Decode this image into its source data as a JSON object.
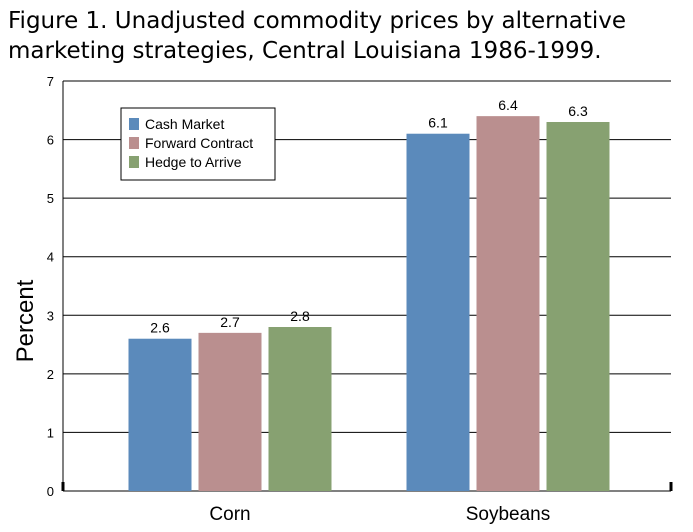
{
  "figure": {
    "title_line1": "Figure 1. Unadjusted commodity prices by alternative",
    "title_line2": "marketing strategies, Central Louisiana 1986-1999."
  },
  "chart_data": {
    "type": "bar",
    "title": "Figure 1. Unadjusted commodity prices by alternative marketing strategies, Central Louisiana 1986-1999.",
    "categories": [
      "Corn",
      "Soybeans"
    ],
    "series": [
      {
        "name": "Cash Market",
        "values": [
          2.6,
          6.1
        ],
        "color": "#5b8abb"
      },
      {
        "name": "Forward Contract",
        "values": [
          2.7,
          6.4
        ],
        "color": "#ba8f8f"
      },
      {
        "name": "Hedge to Arrive",
        "values": [
          2.8,
          6.3
        ],
        "color": "#87a171"
      }
    ],
    "ylabel": "Percent",
    "xlabel": "",
    "ylim": [
      0,
      7
    ],
    "yticks": [
      "0",
      "1",
      "2",
      "3",
      "4",
      "5",
      "6",
      "7"
    ],
    "grid": true,
    "legend_position": "top-left"
  }
}
